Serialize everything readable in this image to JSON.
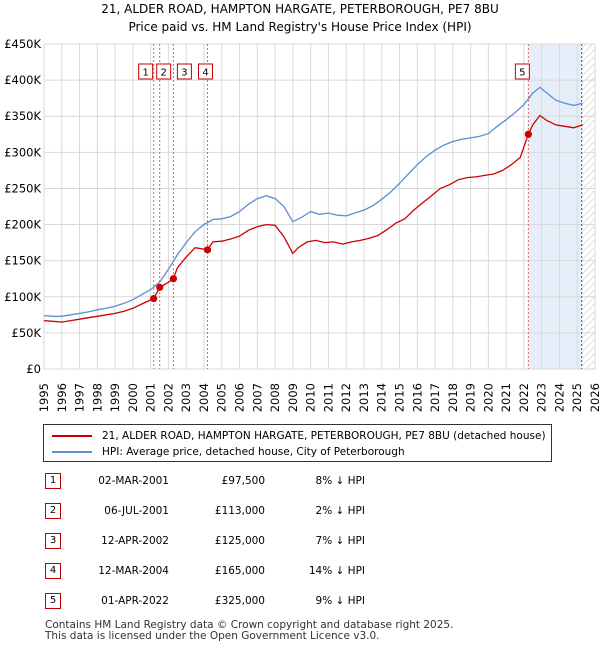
{
  "title_line1": "21, ALDER ROAD, HAMPTON HARGATE, PETERBOROUGH, PE7 8BU",
  "title_line2": "Price paid vs. HM Land Registry's House Price Index (HPI)",
  "chart_data": {
    "type": "line",
    "title": "21, ALDER ROAD, HAMPTON HARGATE, PETERBOROUGH, PE7 8BU - Price paid vs. HM Land Registry's House Price Index (HPI)",
    "xlabel": "",
    "ylabel": "",
    "xlim": [
      1995,
      2026
    ],
    "ylim": [
      0,
      450000
    ],
    "y_ticks": [
      0,
      50000,
      100000,
      150000,
      200000,
      250000,
      300000,
      350000,
      400000,
      450000
    ],
    "y_tick_labels": [
      "£0",
      "£50K",
      "£100K",
      "£150K",
      "£200K",
      "£250K",
      "£300K",
      "£350K",
      "£400K",
      "£450K"
    ],
    "x_ticks": [
      1995,
      1996,
      1997,
      1998,
      1999,
      2000,
      2001,
      2002,
      2003,
      2004,
      2005,
      2006,
      2007,
      2008,
      2009,
      2010,
      2011,
      2012,
      2013,
      2014,
      2015,
      2016,
      2017,
      2018,
      2019,
      2020,
      2021,
      2022,
      2023,
      2024,
      2025,
      2026
    ],
    "grid": true,
    "hatch_after": 2025.25,
    "shaded_region": [
      2022.25,
      2025.25
    ],
    "series": [
      {
        "name": "21, ALDER ROAD, HAMPTON HARGATE, PETERBOROUGH, PE7 8BU (detached house)",
        "color": "#cc0000",
        "x": [
          1995.0,
          1995.5,
          1996.0,
          1996.5,
          1997.0,
          1997.5,
          1998.0,
          1998.5,
          1999.0,
          1999.5,
          2000.0,
          2000.5,
          2001.17,
          2001.51,
          2002.0,
          2002.28,
          2002.5,
          2003.0,
          2003.5,
          2004.2,
          2004.5,
          2005.0,
          2005.5,
          2006.0,
          2006.5,
          2007.0,
          2007.5,
          2008.0,
          2008.5,
          2009.0,
          2009.3,
          2009.8,
          2010.3,
          2010.8,
          2011.3,
          2011.8,
          2012.3,
          2012.8,
          2013.3,
          2013.8,
          2014.3,
          2014.8,
          2015.3,
          2015.8,
          2016.3,
          2016.8,
          2017.3,
          2017.8,
          2018.3,
          2018.8,
          2019.3,
          2019.8,
          2020.3,
          2020.8,
          2021.3,
          2021.8,
          2022.25,
          2022.5,
          2022.9,
          2023.3,
          2023.8,
          2024.3,
          2024.8,
          2025.3
        ],
        "values": [
          67000,
          66000,
          65000,
          67000,
          69000,
          71000,
          73000,
          75000,
          77000,
          80000,
          84000,
          90000,
          97500,
          113000,
          120000,
          125000,
          140000,
          155000,
          168000,
          165000,
          176000,
          177000,
          180000,
          184000,
          192000,
          197000,
          200000,
          199000,
          183000,
          160000,
          168000,
          176000,
          178000,
          175000,
          176000,
          173000,
          176000,
          178000,
          181000,
          185000,
          193000,
          202000,
          208000,
          220000,
          230000,
          240000,
          250000,
          255000,
          262000,
          265000,
          266000,
          268000,
          270000,
          275000,
          283000,
          293000,
          325000,
          338000,
          351000,
          344000,
          338000,
          336000,
          334000,
          338000
        ]
      },
      {
        "name": "HPI: Average price, detached house, City of Peterborough",
        "color": "#5b8fd1",
        "x": [
          1995.0,
          1995.5,
          1996.0,
          1996.5,
          1997.0,
          1997.5,
          1998.0,
          1998.5,
          1999.0,
          1999.5,
          2000.0,
          2000.5,
          2001.0,
          2001.5,
          2002.0,
          2002.5,
          2003.0,
          2003.5,
          2004.0,
          2004.5,
          2005.0,
          2005.5,
          2006.0,
          2006.5,
          2007.0,
          2007.5,
          2008.0,
          2008.5,
          2009.0,
          2009.5,
          2010.0,
          2010.5,
          2011.0,
          2011.5,
          2012.0,
          2012.5,
          2013.0,
          2013.5,
          2014.0,
          2014.5,
          2015.0,
          2015.5,
          2016.0,
          2016.5,
          2017.0,
          2017.5,
          2018.0,
          2018.5,
          2019.0,
          2019.5,
          2020.0,
          2020.5,
          2021.0,
          2021.5,
          2022.0,
          2022.5,
          2022.9,
          2023.3,
          2023.8,
          2024.3,
          2024.8,
          2025.3
        ],
        "values": [
          74000,
          73000,
          73000,
          75000,
          77000,
          79000,
          82000,
          84000,
          87000,
          91000,
          96000,
          103000,
          110000,
          120000,
          138000,
          158000,
          175000,
          190000,
          200000,
          207000,
          208000,
          211000,
          218000,
          228000,
          236000,
          240000,
          236000,
          225000,
          204000,
          210000,
          218000,
          214000,
          216000,
          213000,
          212000,
          216000,
          220000,
          226000,
          235000,
          245000,
          257000,
          270000,
          283000,
          294000,
          303000,
          310000,
          315000,
          318000,
          320000,
          322000,
          326000,
          336000,
          345000,
          355000,
          366000,
          382000,
          390000,
          382000,
          372000,
          368000,
          365000,
          368000
        ]
      }
    ],
    "transactions": [
      {
        "num": "1",
        "x": 2001.17,
        "value": 97500
      },
      {
        "num": "2",
        "x": 2001.51,
        "value": 113000
      },
      {
        "num": "3",
        "x": 2002.28,
        "value": 125000
      },
      {
        "num": "4",
        "x": 2004.2,
        "value": 165000
      },
      {
        "num": "5",
        "x": 2022.25,
        "value": 325000
      }
    ]
  },
  "legend": {
    "series1": "21, ALDER ROAD, HAMPTON HARGATE, PETERBOROUGH, PE7 8BU (detached house)",
    "series2": "HPI: Average price, detached house, City of Peterborough",
    "color1": "#cc0000",
    "color2": "#5b8fd1"
  },
  "table": [
    {
      "num": "1",
      "date": "02-MAR-2001",
      "price": "£97,500",
      "hpi": "8% ↓ HPI"
    },
    {
      "num": "2",
      "date": "06-JUL-2001",
      "price": "£113,000",
      "hpi": "2% ↓ HPI"
    },
    {
      "num": "3",
      "date": "12-APR-2002",
      "price": "£125,000",
      "hpi": "7% ↓ HPI"
    },
    {
      "num": "4",
      "date": "12-MAR-2004",
      "price": "£165,000",
      "hpi": "14% ↓ HPI"
    },
    {
      "num": "5",
      "date": "01-APR-2022",
      "price": "£325,000",
      "hpi": "9% ↓ HPI"
    }
  ],
  "footer_line1": "Contains HM Land Registry data © Crown copyright and database right 2025.",
  "footer_line2": "This data is licensed under the Open Government Licence v3.0."
}
